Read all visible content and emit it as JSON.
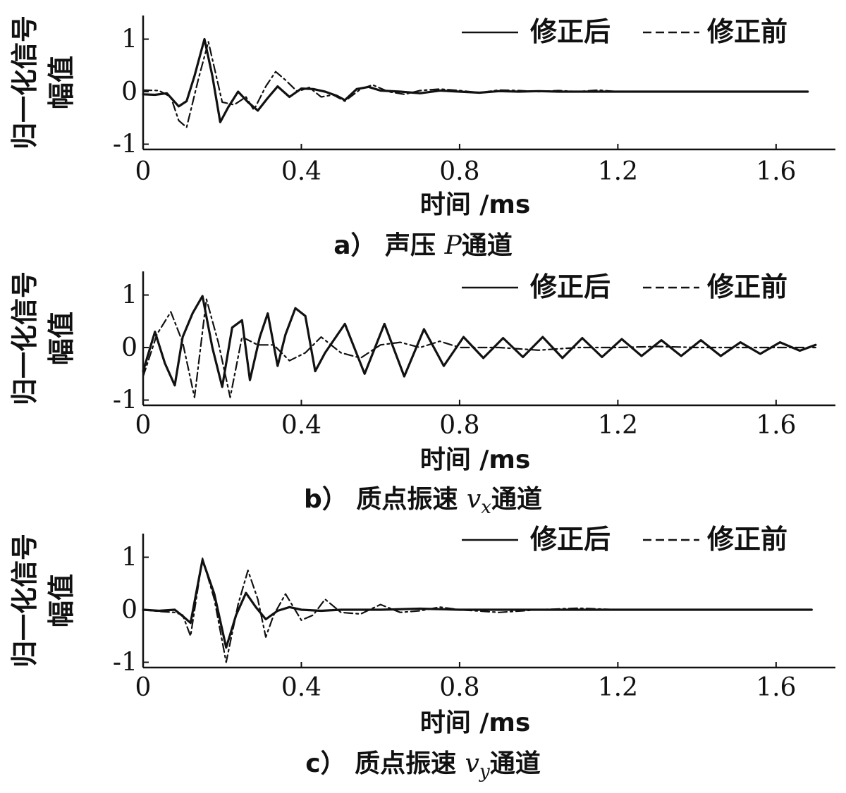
{
  "chart_data": [
    {
      "type": "line",
      "panel": "a",
      "caption_prefix": "a）",
      "caption_text": "声压 ",
      "caption_italic": "P",
      "caption_sub": "",
      "caption_suffix": "通道",
      "xlabel": "时间 /ms",
      "ylabel": [
        "归一化信号",
        "幅值"
      ],
      "xlim": [
        0,
        1.75
      ],
      "ylim": [
        -1.1,
        1.45
      ],
      "xticks": [
        "0",
        "0.4",
        "0.8",
        "1.2",
        "1.6"
      ],
      "yticks": [
        "-1",
        "0",
        "1"
      ],
      "legend_position": "top-right",
      "series": [
        {
          "name": "修正后",
          "style": "solid",
          "x": [
            0,
            0.03,
            0.06,
            0.09,
            0.11,
            0.13,
            0.155,
            0.175,
            0.195,
            0.215,
            0.24,
            0.265,
            0.29,
            0.315,
            0.34,
            0.37,
            0.4,
            0.43,
            0.46,
            0.49,
            0.51,
            0.54,
            0.57,
            0.6,
            0.65,
            0.7,
            0.75,
            0.8,
            0.85,
            0.9,
            0.95,
            1.0,
            1.05,
            1.1,
            1.15,
            1.2,
            1.3,
            1.4,
            1.5,
            1.6,
            1.68
          ],
          "y": [
            -0.05,
            -0.06,
            -0.03,
            -0.28,
            -0.18,
            0.3,
            1.0,
            0.3,
            -0.58,
            -0.3,
            0.0,
            -0.2,
            -0.36,
            -0.12,
            0.1,
            -0.1,
            0.06,
            0.05,
            0.0,
            -0.08,
            -0.16,
            0.05,
            0.09,
            0.02,
            0.0,
            -0.03,
            0.02,
            0.0,
            -0.02,
            0.01,
            0.0,
            0.01,
            0.0,
            0.0,
            0.0,
            0.0,
            0.0,
            0.0,
            0.0,
            0.0,
            0.0
          ]
        },
        {
          "name": "修正前",
          "style": "dashdot",
          "x": [
            0,
            0.04,
            0.07,
            0.09,
            0.11,
            0.14,
            0.165,
            0.2,
            0.23,
            0.26,
            0.28,
            0.31,
            0.335,
            0.36,
            0.39,
            0.42,
            0.45,
            0.48,
            0.51,
            0.55,
            0.58,
            0.62,
            0.66,
            0.7,
            0.75,
            0.8,
            0.85,
            0.9,
            0.95,
            1.0,
            1.05,
            1.1,
            1.15,
            1.2,
            1.25
          ],
          "y": [
            0.03,
            0.02,
            -0.1,
            -0.55,
            -0.68,
            0.25,
            0.95,
            -0.2,
            -0.25,
            -0.1,
            -0.35,
            0.1,
            0.38,
            0.22,
            0.0,
            0.08,
            -0.1,
            -0.06,
            -0.18,
            0.05,
            0.13,
            0.0,
            -0.05,
            0.02,
            0.05,
            0.02,
            -0.02,
            0.03,
            0.02,
            0.0,
            0.02,
            0.0,
            0.03,
            0.0,
            0.0
          ]
        }
      ]
    },
    {
      "type": "line",
      "panel": "b",
      "caption_prefix": "b）",
      "caption_text": "质点振速 ",
      "caption_italic": "v",
      "caption_sub": "x",
      "caption_suffix": "通道",
      "xlabel": "时间 /ms",
      "ylabel": [
        "归一化信号",
        "幅值"
      ],
      "xlim": [
        0,
        1.75
      ],
      "ylim": [
        -1.1,
        1.45
      ],
      "xticks": [
        "0",
        "0.4",
        "0.8",
        "1.2",
        "1.6"
      ],
      "yticks": [
        "-1",
        "0",
        "1"
      ],
      "legend_position": "top-right",
      "series": [
        {
          "name": "修正后",
          "style": "solid",
          "x": [
            0,
            0.03,
            0.055,
            0.08,
            0.1,
            0.125,
            0.15,
            0.175,
            0.2,
            0.225,
            0.25,
            0.27,
            0.295,
            0.315,
            0.34,
            0.36,
            0.385,
            0.41,
            0.435,
            0.46,
            0.51,
            0.56,
            0.61,
            0.66,
            0.71,
            0.76,
            0.81,
            0.86,
            0.91,
            0.96,
            1.01,
            1.06,
            1.11,
            1.16,
            1.21,
            1.26,
            1.31,
            1.36,
            1.41,
            1.46,
            1.51,
            1.56,
            1.61,
            1.66,
            1.7
          ],
          "y": [
            -0.45,
            0.3,
            -0.3,
            -0.72,
            0.2,
            0.65,
            0.98,
            0.0,
            -0.75,
            0.38,
            0.52,
            -0.62,
            0.2,
            0.65,
            -0.35,
            0.25,
            0.75,
            0.6,
            -0.45,
            -0.1,
            0.45,
            -0.5,
            0.45,
            -0.55,
            0.35,
            -0.35,
            0.2,
            -0.2,
            0.18,
            -0.18,
            0.2,
            -0.2,
            0.18,
            -0.18,
            0.16,
            -0.16,
            0.14,
            -0.16,
            0.14,
            -0.16,
            0.1,
            -0.12,
            0.1,
            -0.06,
            0.05
          ]
        },
        {
          "name": "修正前",
          "style": "dashdot",
          "x": [
            0,
            0.035,
            0.07,
            0.1,
            0.13,
            0.16,
            0.19,
            0.22,
            0.25,
            0.29,
            0.33,
            0.37,
            0.41,
            0.45,
            0.5,
            0.55,
            0.6,
            0.65,
            0.7,
            0.75,
            0.8,
            0.9,
            1.0,
            1.1,
            1.2,
            1.3,
            1.4,
            1.5,
            1.6,
            1.7
          ],
          "y": [
            -0.55,
            0.25,
            0.68,
            0.1,
            -0.95,
            0.92,
            0.1,
            -0.95,
            0.2,
            0.05,
            0.05,
            -0.25,
            -0.1,
            0.2,
            -0.1,
            -0.2,
            0.05,
            0.1,
            0.0,
            0.12,
            0.0,
            0.0,
            -0.05,
            0.0,
            0.0,
            0.02,
            0.0,
            0.0,
            0.0,
            0.0
          ]
        }
      ]
    },
    {
      "type": "line",
      "panel": "c",
      "caption_prefix": "c）",
      "caption_text": "质点振速 ",
      "caption_italic": "v",
      "caption_sub": "y",
      "caption_suffix": "通道",
      "xlabel": "时间 /ms",
      "ylabel": [
        "归一化信号",
        "幅值"
      ],
      "xlim": [
        0,
        1.75
      ],
      "ylim": [
        -1.1,
        1.45
      ],
      "xticks": [
        "0",
        "0.4",
        "0.8",
        "1.2",
        "1.6"
      ],
      "yticks": [
        "-1",
        "0",
        "1"
      ],
      "legend_position": "top-right",
      "series": [
        {
          "name": "修正后",
          "style": "solid",
          "x": [
            0,
            0.04,
            0.08,
            0.1,
            0.12,
            0.15,
            0.18,
            0.21,
            0.235,
            0.26,
            0.285,
            0.31,
            0.34,
            0.37,
            0.4,
            0.45,
            0.5,
            0.6,
            0.7,
            0.8,
            0.9,
            1.0,
            1.1,
            1.2,
            1.3,
            1.4,
            1.5,
            1.6,
            1.69
          ],
          "y": [
            0.0,
            -0.02,
            0.0,
            -0.12,
            -0.25,
            0.95,
            0.3,
            -0.72,
            -0.1,
            0.32,
            0.05,
            -0.18,
            -0.02,
            0.05,
            0.0,
            -0.02,
            0.0,
            0.0,
            0.02,
            0.0,
            0.0,
            0.0,
            0.0,
            0.0,
            0.0,
            0.0,
            0.0,
            0.0,
            0.0
          ]
        },
        {
          "name": "修正前",
          "style": "dashdot",
          "x": [
            0,
            0.04,
            0.08,
            0.1,
            0.12,
            0.15,
            0.18,
            0.21,
            0.24,
            0.265,
            0.29,
            0.31,
            0.33,
            0.36,
            0.4,
            0.43,
            0.46,
            0.5,
            0.55,
            0.6,
            0.65,
            0.7,
            0.75,
            0.8,
            0.9,
            1.0,
            1.1,
            1.2
          ],
          "y": [
            0.0,
            -0.03,
            -0.05,
            -0.1,
            -0.5,
            0.98,
            0.2,
            -1.0,
            0.1,
            0.75,
            0.2,
            -0.52,
            -0.1,
            0.3,
            -0.2,
            -0.1,
            0.2,
            -0.05,
            -0.08,
            0.1,
            -0.05,
            -0.02,
            0.05,
            0.0,
            -0.05,
            0.0,
            0.03,
            0.0
          ]
        }
      ]
    }
  ]
}
